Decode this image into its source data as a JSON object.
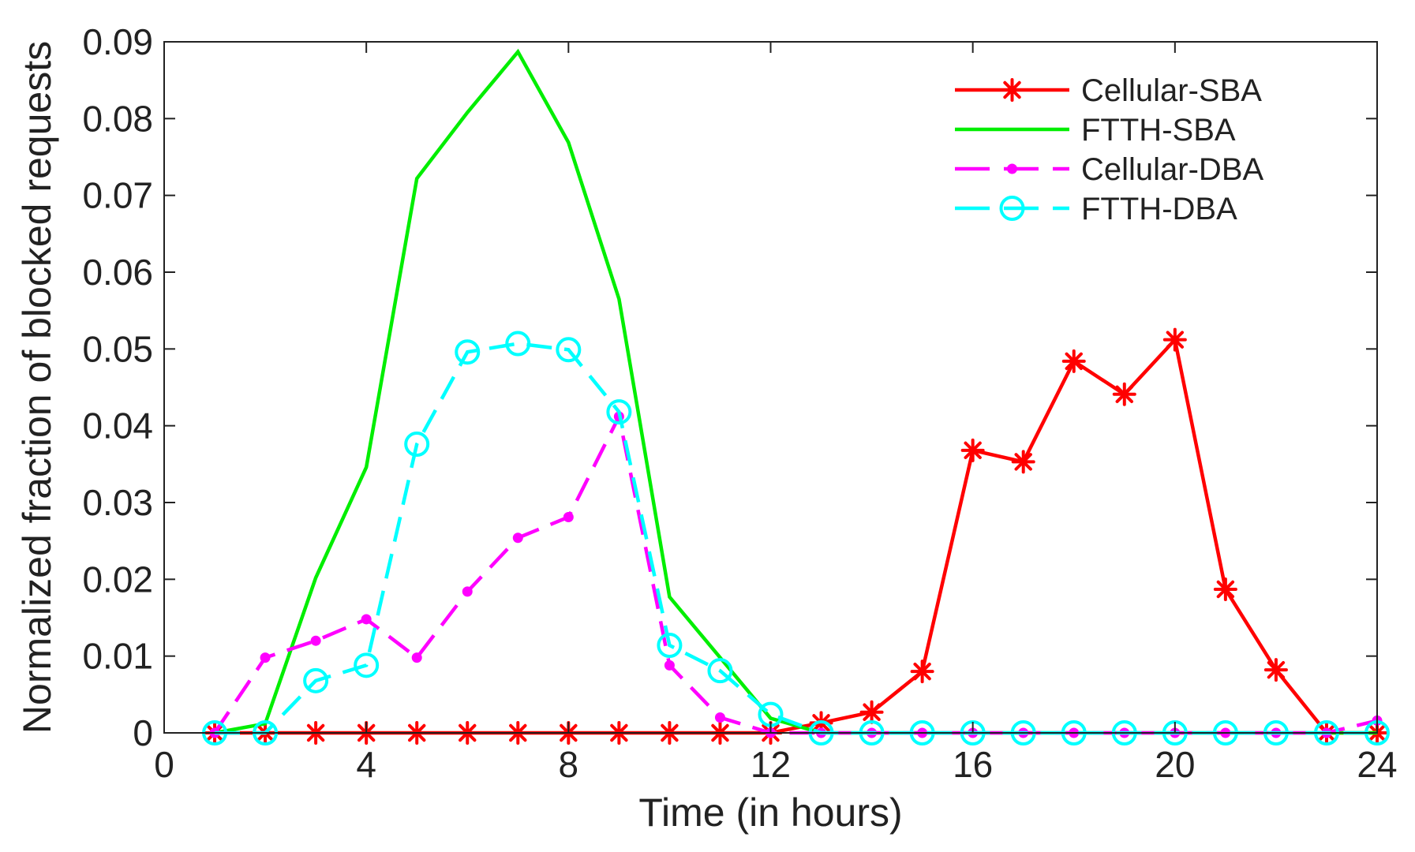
{
  "chart_data": {
    "type": "line",
    "title": "",
    "xlabel": "Time (in hours)",
    "ylabel": "Normalized fraction of blocked requests",
    "xlim": [
      0,
      24
    ],
    "ylim": [
      0,
      0.09
    ],
    "xticks": [
      0,
      4,
      8,
      12,
      16,
      20,
      24
    ],
    "xtick_labels": [
      "0",
      "4",
      "8",
      "12",
      "16",
      "20",
      "24"
    ],
    "yticks": [
      0,
      0.01,
      0.02,
      0.03,
      0.04,
      0.05,
      0.06,
      0.07,
      0.08,
      0.09
    ],
    "ytick_labels": [
      "0",
      "0.01",
      "0.02",
      "0.03",
      "0.04",
      "0.05",
      "0.06",
      "0.07",
      "0.08",
      "0.09"
    ],
    "grid": false,
    "legend_position": "top-right",
    "x": [
      1,
      2,
      3,
      4,
      5,
      6,
      7,
      8,
      9,
      10,
      11,
      12,
      13,
      14,
      15,
      16,
      17,
      18,
      19,
      20,
      21,
      22,
      23,
      24
    ],
    "series": [
      {
        "name": "Cellular-SBA",
        "color": "#ff0000",
        "line_style": "solid",
        "marker": "asterisk",
        "values": [
          0,
          0,
          0,
          0,
          0,
          0,
          0,
          0,
          0,
          0,
          0,
          0,
          0.0013,
          0.0027,
          0.008,
          0.0368,
          0.0353,
          0.0484,
          0.0441,
          0.0512,
          0.0187,
          0.0082,
          0,
          0
        ]
      },
      {
        "name": "FTTH-SBA",
        "color": "#00ee00",
        "line_style": "solid",
        "marker": "none",
        "values": [
          0,
          0.0012,
          0.0202,
          0.0346,
          0.0722,
          0.0808,
          0.0887,
          0.0769,
          0.0565,
          0.0177,
          0.0098,
          0.0019,
          0,
          0,
          0,
          0,
          0,
          0,
          0,
          0,
          0,
          0,
          0,
          0
        ]
      },
      {
        "name": "Cellular-DBA",
        "color": "#ff00ff",
        "line_style": "dashed",
        "marker": "dot",
        "values": [
          0,
          0.0098,
          0.012,
          0.0148,
          0.0098,
          0.0184,
          0.0254,
          0.0281,
          0.0412,
          0.0088,
          0.002,
          0,
          0,
          0,
          0,
          0,
          0,
          0,
          0,
          0,
          0,
          0,
          0,
          0.0016
        ]
      },
      {
        "name": "FTTH-DBA",
        "color": "#00ffff",
        "line_style": "dashed",
        "marker": "circle",
        "values": [
          0,
          0,
          0.0068,
          0.0088,
          0.0376,
          0.0496,
          0.0507,
          0.0499,
          0.0418,
          0.0114,
          0.0081,
          0.0024,
          0,
          0,
          0,
          0,
          0,
          0,
          0,
          0,
          0,
          0,
          0,
          0
        ]
      }
    ]
  }
}
